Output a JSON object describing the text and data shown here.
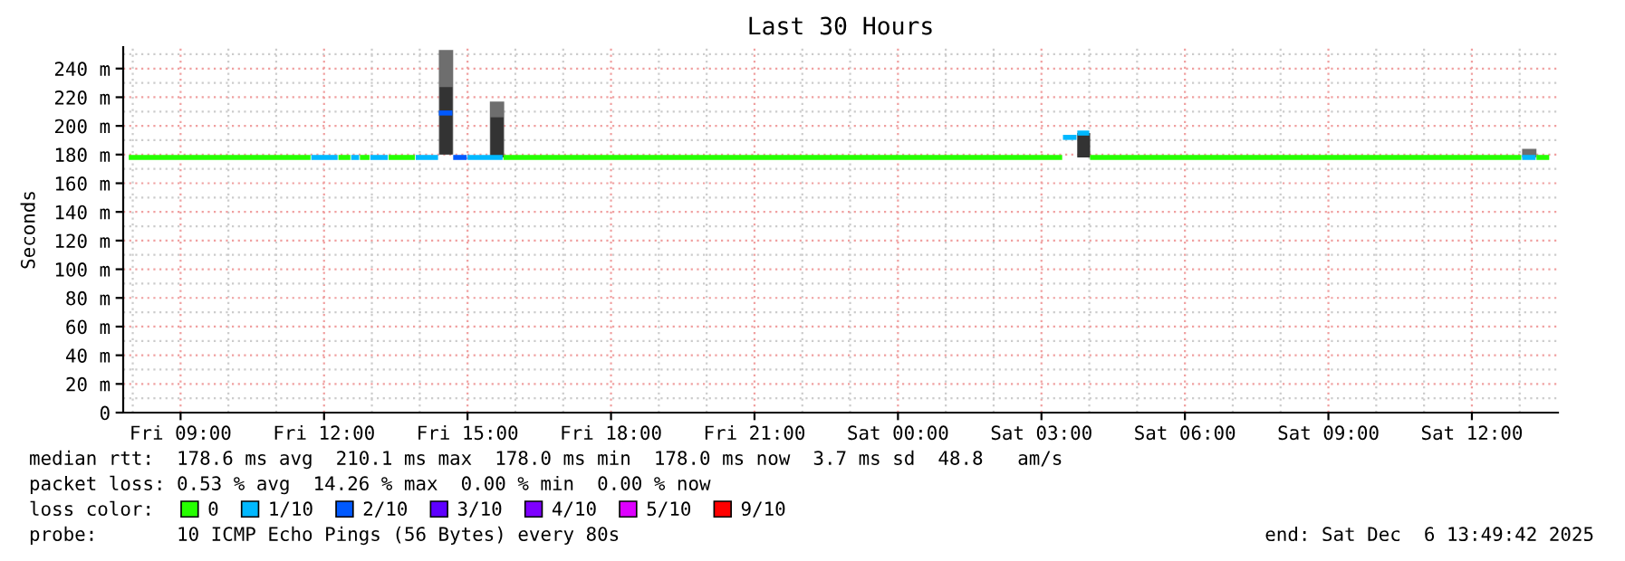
{
  "chart_data": {
    "type": "line",
    "title": "Last 30 Hours",
    "ylabel": "Seconds",
    "series": [
      {
        "type": "bar",
        "color": "#6e6e6e",
        "x": [
          "2025-12-05T14:33",
          "2025-12-05T15:37",
          "2025-12-06T13:12"
        ],
        "base": [
          180,
          178,
          178
        ],
        "values": [
          73,
          39,
          6
        ]
      },
      {
        "type": "bar",
        "color": "#333333",
        "x": [
          "2025-12-05T14:33",
          "2025-12-05T15:37",
          "2025-12-06T03:53"
        ],
        "base": [
          180,
          178,
          178
        ],
        "values": [
          47,
          28,
          17
        ]
      },
      {
        "name": "0",
        "color": "#26ff00",
        "x": [
          "2025-12-05T07:55",
          "2025-12-05T11:43"
        ],
        "values": [
          178,
          178
        ]
      },
      {
        "name": "1/10",
        "color": "#00b8ff",
        "x": [
          "2025-12-05T11:44",
          "2025-12-05T12:17"
        ],
        "values": [
          178,
          178
        ]
      },
      {
        "name": "2/10",
        "color": "#0059ff",
        "x": [
          "2025-12-05T14:24",
          "2025-12-05T14:41"
        ],
        "values": [
          209,
          209
        ]
      },
      {
        "name": "3/10",
        "color": "#5e00ff"
      },
      {
        "name": "4/10",
        "color": "#7e00ff"
      },
      {
        "name": "5/10",
        "color": "#dd00ff"
      },
      {
        "name": "9/10",
        "color": "#ff0000"
      },
      {
        "color": "#26ff00",
        "x": [
          "2025-12-05T12:18",
          "2025-12-05T12:33"
        ],
        "values": [
          178,
          178
        ]
      },
      {
        "color": "#26ff00",
        "x": [
          "2025-12-05T12:45",
          "2025-12-05T12:57"
        ],
        "values": [
          178,
          178
        ]
      },
      {
        "color": "#26ff00",
        "x": [
          "2025-12-05T13:21",
          "2025-12-05T13:54"
        ],
        "values": [
          178,
          178
        ]
      },
      {
        "color": "#26ff00",
        "x": [
          "2025-12-05T15:45",
          "2025-12-06T03:26"
        ],
        "values": [
          178,
          178
        ]
      },
      {
        "color": "#26ff00",
        "x": [
          "2025-12-06T04:01",
          "2025-12-06T13:02"
        ],
        "values": [
          178,
          178
        ]
      },
      {
        "color": "#26ff00",
        "x": [
          "2025-12-06T13:21",
          "2025-12-06T13:37"
        ],
        "values": [
          178,
          178
        ]
      },
      {
        "color": "#00b8ff",
        "x": [
          "2025-12-05T12:34",
          "2025-12-05T12:44"
        ],
        "values": [
          178,
          178
        ]
      },
      {
        "color": "#00b8ff",
        "x": [
          "2025-12-05T12:58",
          "2025-12-05T13:20"
        ],
        "values": [
          178,
          178
        ]
      },
      {
        "color": "#00b8ff",
        "x": [
          "2025-12-05T13:55",
          "2025-12-05T14:23"
        ],
        "values": [
          178,
          178
        ]
      },
      {
        "color": "#00b8ff",
        "x": [
          "2025-12-05T15:00",
          "2025-12-05T15:44"
        ],
        "values": [
          178,
          178
        ]
      },
      {
        "color": "#00b8ff",
        "x": [
          "2025-12-06T03:27",
          "2025-12-06T03:44"
        ],
        "values": [
          192,
          192
        ]
      },
      {
        "color": "#00b8ff",
        "x": [
          "2025-12-06T03:45",
          "2025-12-06T04:00"
        ],
        "values": [
          195,
          195
        ]
      },
      {
        "color": "#00b8ff",
        "x": [
          "2025-12-06T13:03",
          "2025-12-06T13:20"
        ],
        "values": [
          178,
          178
        ]
      },
      {
        "color": "#0059ff",
        "x": [
          "2025-12-05T14:42",
          "2025-12-05T14:59"
        ],
        "values": [
          178,
          178
        ]
      }
    ],
    "legend_title": "loss color:",
    "legend": "bottom",
    "grid": true,
    "xlim": [
      "2025-12-05T07:48",
      "2025-12-06T13:48"
    ],
    "xticks": [
      {
        "value": "2025-12-05T09:00",
        "label": "Fri 09:00"
      },
      {
        "value": "2025-12-05T12:00",
        "label": "Fri 12:00"
      },
      {
        "value": "2025-12-05T15:00",
        "label": "Fri 15:00"
      },
      {
        "value": "2025-12-05T18:00",
        "label": "Fri 18:00"
      },
      {
        "value": "2025-12-05T21:00",
        "label": "Fri 21:00"
      },
      {
        "value": "2025-12-06T00:00",
        "label": "Sat 00:00"
      },
      {
        "value": "2025-12-06T03:00",
        "label": "Sat 03:00"
      },
      {
        "value": "2025-12-06T06:00",
        "label": "Sat 06:00"
      },
      {
        "value": "2025-12-06T09:00",
        "label": "Sat 09:00"
      },
      {
        "value": "2025-12-06T12:00",
        "label": "Sat 12:00"
      }
    ],
    "ylim": [
      0,
      255
    ],
    "yticks": [
      0,
      {
        "value": 20,
        "label": "20 m"
      },
      {
        "value": 40,
        "label": "40 m"
      },
      {
        "value": 60,
        "label": "60 m"
      },
      {
        "value": 80,
        "label": "80 m"
      },
      {
        "value": 100,
        "label": "100 m"
      },
      {
        "value": 120,
        "label": "120 m"
      },
      {
        "value": 140,
        "label": "140 m"
      },
      {
        "value": 160,
        "label": "160 m"
      },
      {
        "value": 180,
        "label": "180 m"
      },
      {
        "value": 200,
        "label": "200 m"
      },
      {
        "value": 220,
        "label": "220 m"
      },
      {
        "value": 240,
        "label": "240 m"
      }
    ],
    "annotations": [
      "median rtt:  178.6 ms avg  210.1 ms max  178.0 ms min  178.0 ms now  3.7 ms sd  48.8   am/s",
      "packet loss: 0.53 % avg  14.26 % max  0.00 % min  0.00 % now",
      "probe:       10 ICMP Echo Pings (56 Bytes) every 80s",
      "end: Sat Dec  6 13:49:42 2025"
    ]
  }
}
